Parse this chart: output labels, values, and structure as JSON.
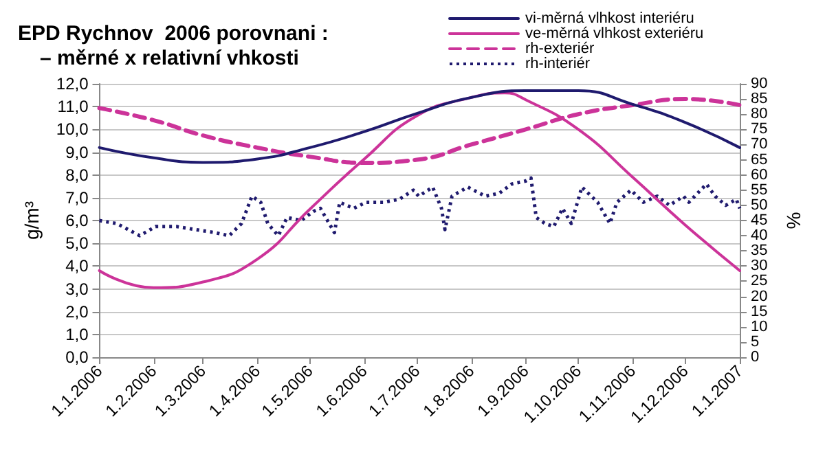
{
  "chart_data": {
    "type": "line",
    "title": "EPD Rychnov  2006 porovnani :",
    "subtitle": "– měrné x relativní vhkosti",
    "ylabel": "g/m³",
    "y2label": "%",
    "xlim": [
      "2006-01-01",
      "2007-01-01"
    ],
    "xticks": [
      {
        "value": "2006-01-01",
        "label": "1.1.2006"
      },
      {
        "value": "2006-02-01",
        "label": "1.2.2006"
      },
      {
        "value": "2006-03-01",
        "label": "1.3.2006"
      },
      {
        "value": "2006-04-01",
        "label": "1.4.2006"
      },
      {
        "value": "2006-05-01",
        "label": "1.5.2006"
      },
      {
        "value": "2006-06-01",
        "label": "1.6.2006"
      },
      {
        "value": "2006-07-01",
        "label": "1.7.2006"
      },
      {
        "value": "2006-08-01",
        "label": "1.8.2006"
      },
      {
        "value": "2006-09-01",
        "label": "1.9.2006"
      },
      {
        "value": "2006-10-01",
        "label": "1.10.2006"
      },
      {
        "value": "2006-11-01",
        "label": "1.11.2006"
      },
      {
        "value": "2006-12-01",
        "label": "1.12.2006"
      },
      {
        "value": "2007-01-01",
        "label": "1.1.2007"
      }
    ],
    "ylim": [
      0,
      12
    ],
    "yticks": [
      {
        "value": 0,
        "label": "0,0"
      },
      {
        "value": 1,
        "label": "1,0"
      },
      {
        "value": 2,
        "label": "2,0"
      },
      {
        "value": 3,
        "label": "3,0"
      },
      {
        "value": 4,
        "label": "4,0"
      },
      {
        "value": 5,
        "label": "5,0"
      },
      {
        "value": 6,
        "label": "6,0"
      },
      {
        "value": 7,
        "label": "7,0"
      },
      {
        "value": 8,
        "label": "8,0"
      },
      {
        "value": 9,
        "label": "9,0"
      },
      {
        "value": 10,
        "label": "10,0"
      },
      {
        "value": 11,
        "label": "11,0"
      },
      {
        "value": 12,
        "label": "12,0"
      }
    ],
    "y2lim": [
      0,
      90
    ],
    "y2ticks": [
      0,
      5,
      10,
      15,
      20,
      25,
      30,
      35,
      40,
      45,
      50,
      55,
      60,
      65,
      70,
      75,
      80,
      85,
      90
    ],
    "grid": "y",
    "legend": "top right",
    "marker": "none",
    "series": [
      {
        "name": "vi-měrná vlhkost interiéru",
        "color": "#1f1a6e",
        "line_style": "solid",
        "x": [
          "2006-01-01",
          "2006-02-01",
          "2006-03-01",
          "2006-04-01",
          "2006-05-01",
          "2006-06-01",
          "2006-07-01",
          "2006-08-01",
          "2006-09-01",
          "2006-10-01",
          "2006-11-01",
          "2006-12-01",
          "2007-01-01"
        ],
        "values": [
          9.2,
          8.75,
          8.55,
          8.7,
          9.2,
          9.9,
          10.7,
          11.4,
          11.7,
          11.7,
          11.1,
          10.3,
          9.2
        ]
      },
      {
        "name": "ve-měrná vlhkost exteriéru",
        "color": "#cc3399",
        "line_style": "solid",
        "x": [
          "2006-01-01",
          "2006-02-01",
          "2006-03-01",
          "2006-04-01",
          "2006-05-01",
          "2006-06-01",
          "2006-07-01",
          "2006-08-01",
          "2006-08-20",
          "2006-09-01",
          "2006-10-01",
          "2006-11-01",
          "2006-12-01",
          "2007-01-01"
        ],
        "values": [
          3.8,
          3.05,
          3.3,
          4.3,
          6.5,
          8.7,
          10.6,
          11.4,
          11.6,
          11.3,
          10.0,
          7.9,
          5.8,
          3.8
        ]
      },
      {
        "name": "rh-exteriér",
        "color": "#cc3399",
        "line_style": "dashed",
        "axis": "y2",
        "x": [
          "2006-01-01",
          "2006-02-01",
          "2006-03-01",
          "2006-04-01",
          "2006-05-01",
          "2006-06-01",
          "2006-07-01",
          "2006-08-01",
          "2006-09-01",
          "2006-10-01",
          "2006-11-01",
          "2006-12-01",
          "2007-01-01"
        ],
        "values": [
          82,
          78,
          73,
          69,
          66,
          64,
          65,
          70,
          75,
          80,
          83,
          85,
          83
        ]
      },
      {
        "name": "rh-interiér",
        "color": "#1f1a6e",
        "line_style": "dotted",
        "axis": "y2",
        "x": [
          "2006-01-01",
          "2006-01-11",
          "2006-01-24",
          "2006-02-02",
          "2006-02-14",
          "2006-02-25",
          "2006-03-08",
          "2006-03-16",
          "2006-03-23",
          "2006-03-29",
          "2006-04-03",
          "2006-04-07",
          "2006-04-13",
          "2006-04-18",
          "2006-04-26",
          "2006-05-03",
          "2006-05-07",
          "2006-05-15",
          "2006-05-18",
          "2006-05-26",
          "2006-06-02",
          "2006-06-12",
          "2006-06-21",
          "2006-06-29",
          "2006-07-02",
          "2006-07-10",
          "2006-07-15",
          "2006-07-17",
          "2006-07-21",
          "2006-07-30",
          "2006-08-09",
          "2006-08-17",
          "2006-08-24",
          "2006-09-01",
          "2006-09-04",
          "2006-09-07",
          "2006-09-12",
          "2006-09-17",
          "2006-09-22",
          "2006-09-27",
          "2006-10-03",
          "2006-10-12",
          "2006-10-19",
          "2006-10-23",
          "2006-10-31",
          "2006-11-07",
          "2006-11-15",
          "2006-11-22",
          "2006-11-30",
          "2006-12-03",
          "2006-12-13",
          "2006-12-18",
          "2006-12-24",
          "2006-12-30",
          "2007-01-01"
        ],
        "values": [
          45,
          44,
          40,
          43,
          43,
          42,
          41,
          40,
          44,
          53,
          51,
          44,
          40,
          46,
          45,
          48,
          49,
          41,
          51,
          49,
          51,
          51,
          52,
          55,
          53,
          56,
          49,
          42,
          53,
          56,
          53,
          54,
          57,
          58,
          59,
          46,
          44,
          43,
          49,
          44,
          56,
          51,
          44,
          51,
          55,
          51,
          53,
          50,
          53,
          51,
          57,
          53,
          50,
          52,
          49
        ]
      }
    ]
  }
}
